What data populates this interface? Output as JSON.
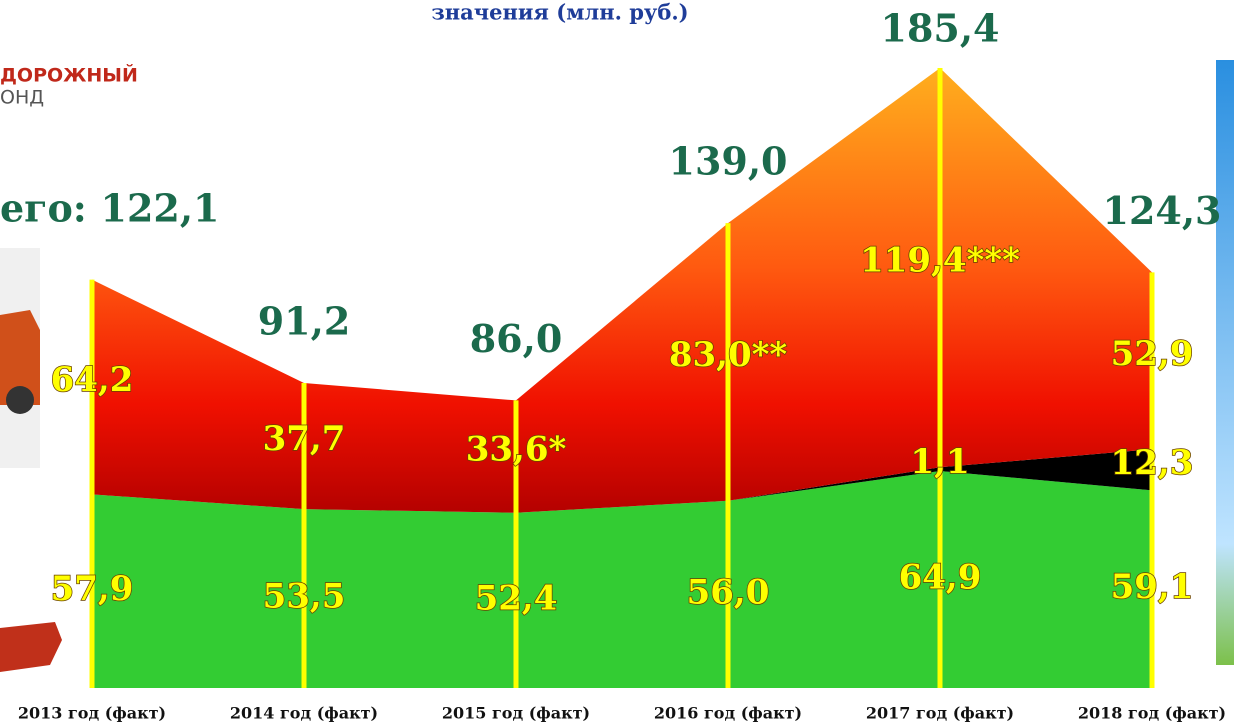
{
  "chart_data": {
    "type": "stacked-area",
    "title": "значения (млн. руб.)",
    "logo": [
      "ДОРОЖНЫЙ",
      "ОНД"
    ],
    "total_prefix": "его:",
    "categories": [
      "2013 год (факт)",
      "2014 год (факт)",
      "2015 год (факт)",
      "2016 год (факт)",
      "2017 год (факт)",
      "2018 год (факт)"
    ],
    "series": [
      {
        "color": "#33cc33",
        "values": [
          57.9,
          53.5,
          52.4,
          56.0,
          64.9,
          59.1
        ],
        "value_labels": [
          "57,9",
          "53,5",
          "52,4",
          "56,0",
          "64,9",
          "59,1"
        ]
      },
      {
        "color": "#000000",
        "values": [
          0,
          0,
          0,
          0,
          1.1,
          12.3
        ],
        "value_labels": [
          null,
          null,
          null,
          null,
          "1,1",
          "12,3"
        ]
      },
      {
        "color": "#ff2a00",
        "values": [
          64.2,
          37.7,
          33.6,
          83.0,
          119.4,
          52.9
        ],
        "value_labels": [
          "64,2",
          "37,7",
          "33,6*",
          "83,0**",
          "119,4***",
          "52,9"
        ]
      }
    ],
    "totals": {
      "values": [
        122.1,
        91.2,
        86.0,
        139.0,
        185.4,
        124.3
      ],
      "value_labels": [
        "122,1",
        "91,2",
        "86,0",
        "139,0",
        "185,4",
        "124,3"
      ]
    },
    "ylim": [
      0,
      185.4
    ]
  }
}
